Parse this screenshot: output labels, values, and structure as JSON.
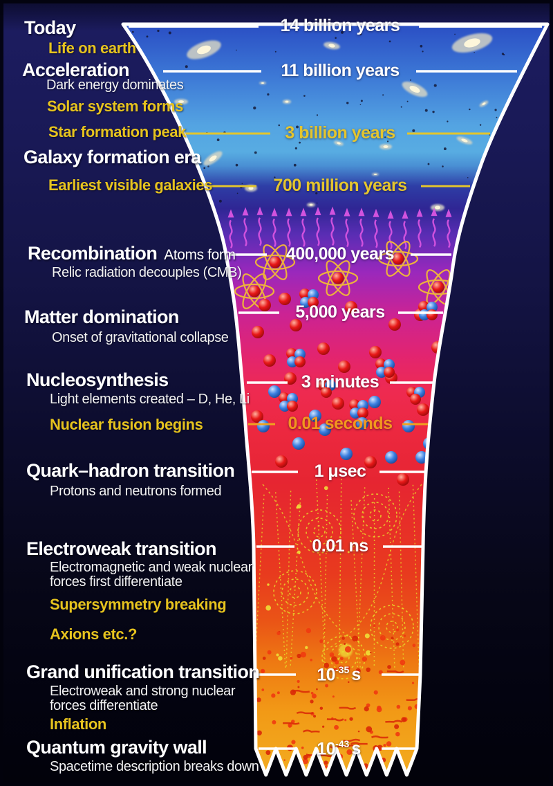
{
  "colors": {
    "highlight_yellow": "#e6c31e",
    "time_yellow": "#e4c52e",
    "time_orange": "#f2971e",
    "funnel_border": "#ffffff",
    "cmb_arrows": "#da55e2",
    "atom_orbit": "#edb23c",
    "track_yellow": "#e8e22a"
  },
  "epochs": [
    {
      "time": "14 billion years",
      "color": "white"
    },
    {
      "time": "11 billion years",
      "color": "white"
    },
    {
      "time": "3 billion years",
      "color": "yellow"
    },
    {
      "time": "700 million years",
      "color": "yellow"
    },
    {
      "time": "400,000 years",
      "color": "white"
    },
    {
      "time": "5,000 years",
      "color": "white"
    },
    {
      "time": "3 minutes",
      "color": "white"
    },
    {
      "time": "0.01 seconds",
      "color": "orange"
    },
    {
      "time": "1 μsec",
      "color": "white"
    },
    {
      "time": "0.01 ns",
      "color": "white"
    },
    {
      "time": "10",
      "exp": "-35",
      "unit": "s",
      "color": "white"
    },
    {
      "time": "10",
      "exp": "-43",
      "unit": "s",
      "color": "white"
    }
  ],
  "left_labels": [
    {
      "text": "Today",
      "kind": "title"
    },
    {
      "text": "Life on earth",
      "kind": "highlight"
    },
    {
      "text": "Acceleration",
      "kind": "title"
    },
    {
      "text": "Dark energy dominates",
      "kind": "sub"
    },
    {
      "text": "Solar system forms",
      "kind": "highlight"
    },
    {
      "text": "Star formation peak",
      "kind": "highlight"
    },
    {
      "text": "Galaxy formation era",
      "kind": "title"
    },
    {
      "text": "Earliest visible galaxies",
      "kind": "highlight"
    },
    {
      "text": "Recombination",
      "suffix": "Atoms form",
      "kind": "title"
    },
    {
      "text": "Relic radiation decouples (CMB)",
      "kind": "sub"
    },
    {
      "text": "Matter domination",
      "kind": "title"
    },
    {
      "text": "Onset of gravitational collapse",
      "kind": "sub"
    },
    {
      "text": "Nucleosynthesis",
      "kind": "title"
    },
    {
      "text": "Light elements created – D, He, Li",
      "kind": "sub"
    },
    {
      "text": "Nuclear fusion begins",
      "kind": "highlight"
    },
    {
      "text": "Quark–hadron transition",
      "kind": "title"
    },
    {
      "text": "Protons and neutrons formed",
      "kind": "sub"
    },
    {
      "text": "Electroweak transition",
      "kind": "title"
    },
    {
      "text": "Electromagnetic and weak nuclear\nforces first differentiate",
      "kind": "sub"
    },
    {
      "text": "Supersymmetry breaking",
      "kind": "highlight"
    },
    {
      "text": "Axions etc.?",
      "kind": "highlight"
    },
    {
      "text": "Grand unification transition",
      "kind": "title"
    },
    {
      "text": "Electroweak and strong nuclear\nforces differentiate",
      "kind": "sub"
    },
    {
      "text": "Inflation",
      "kind": "highlight"
    },
    {
      "text": "Quantum gravity wall",
      "kind": "title"
    },
    {
      "text": "Spacetime description breaks down",
      "kind": "sub"
    }
  ]
}
